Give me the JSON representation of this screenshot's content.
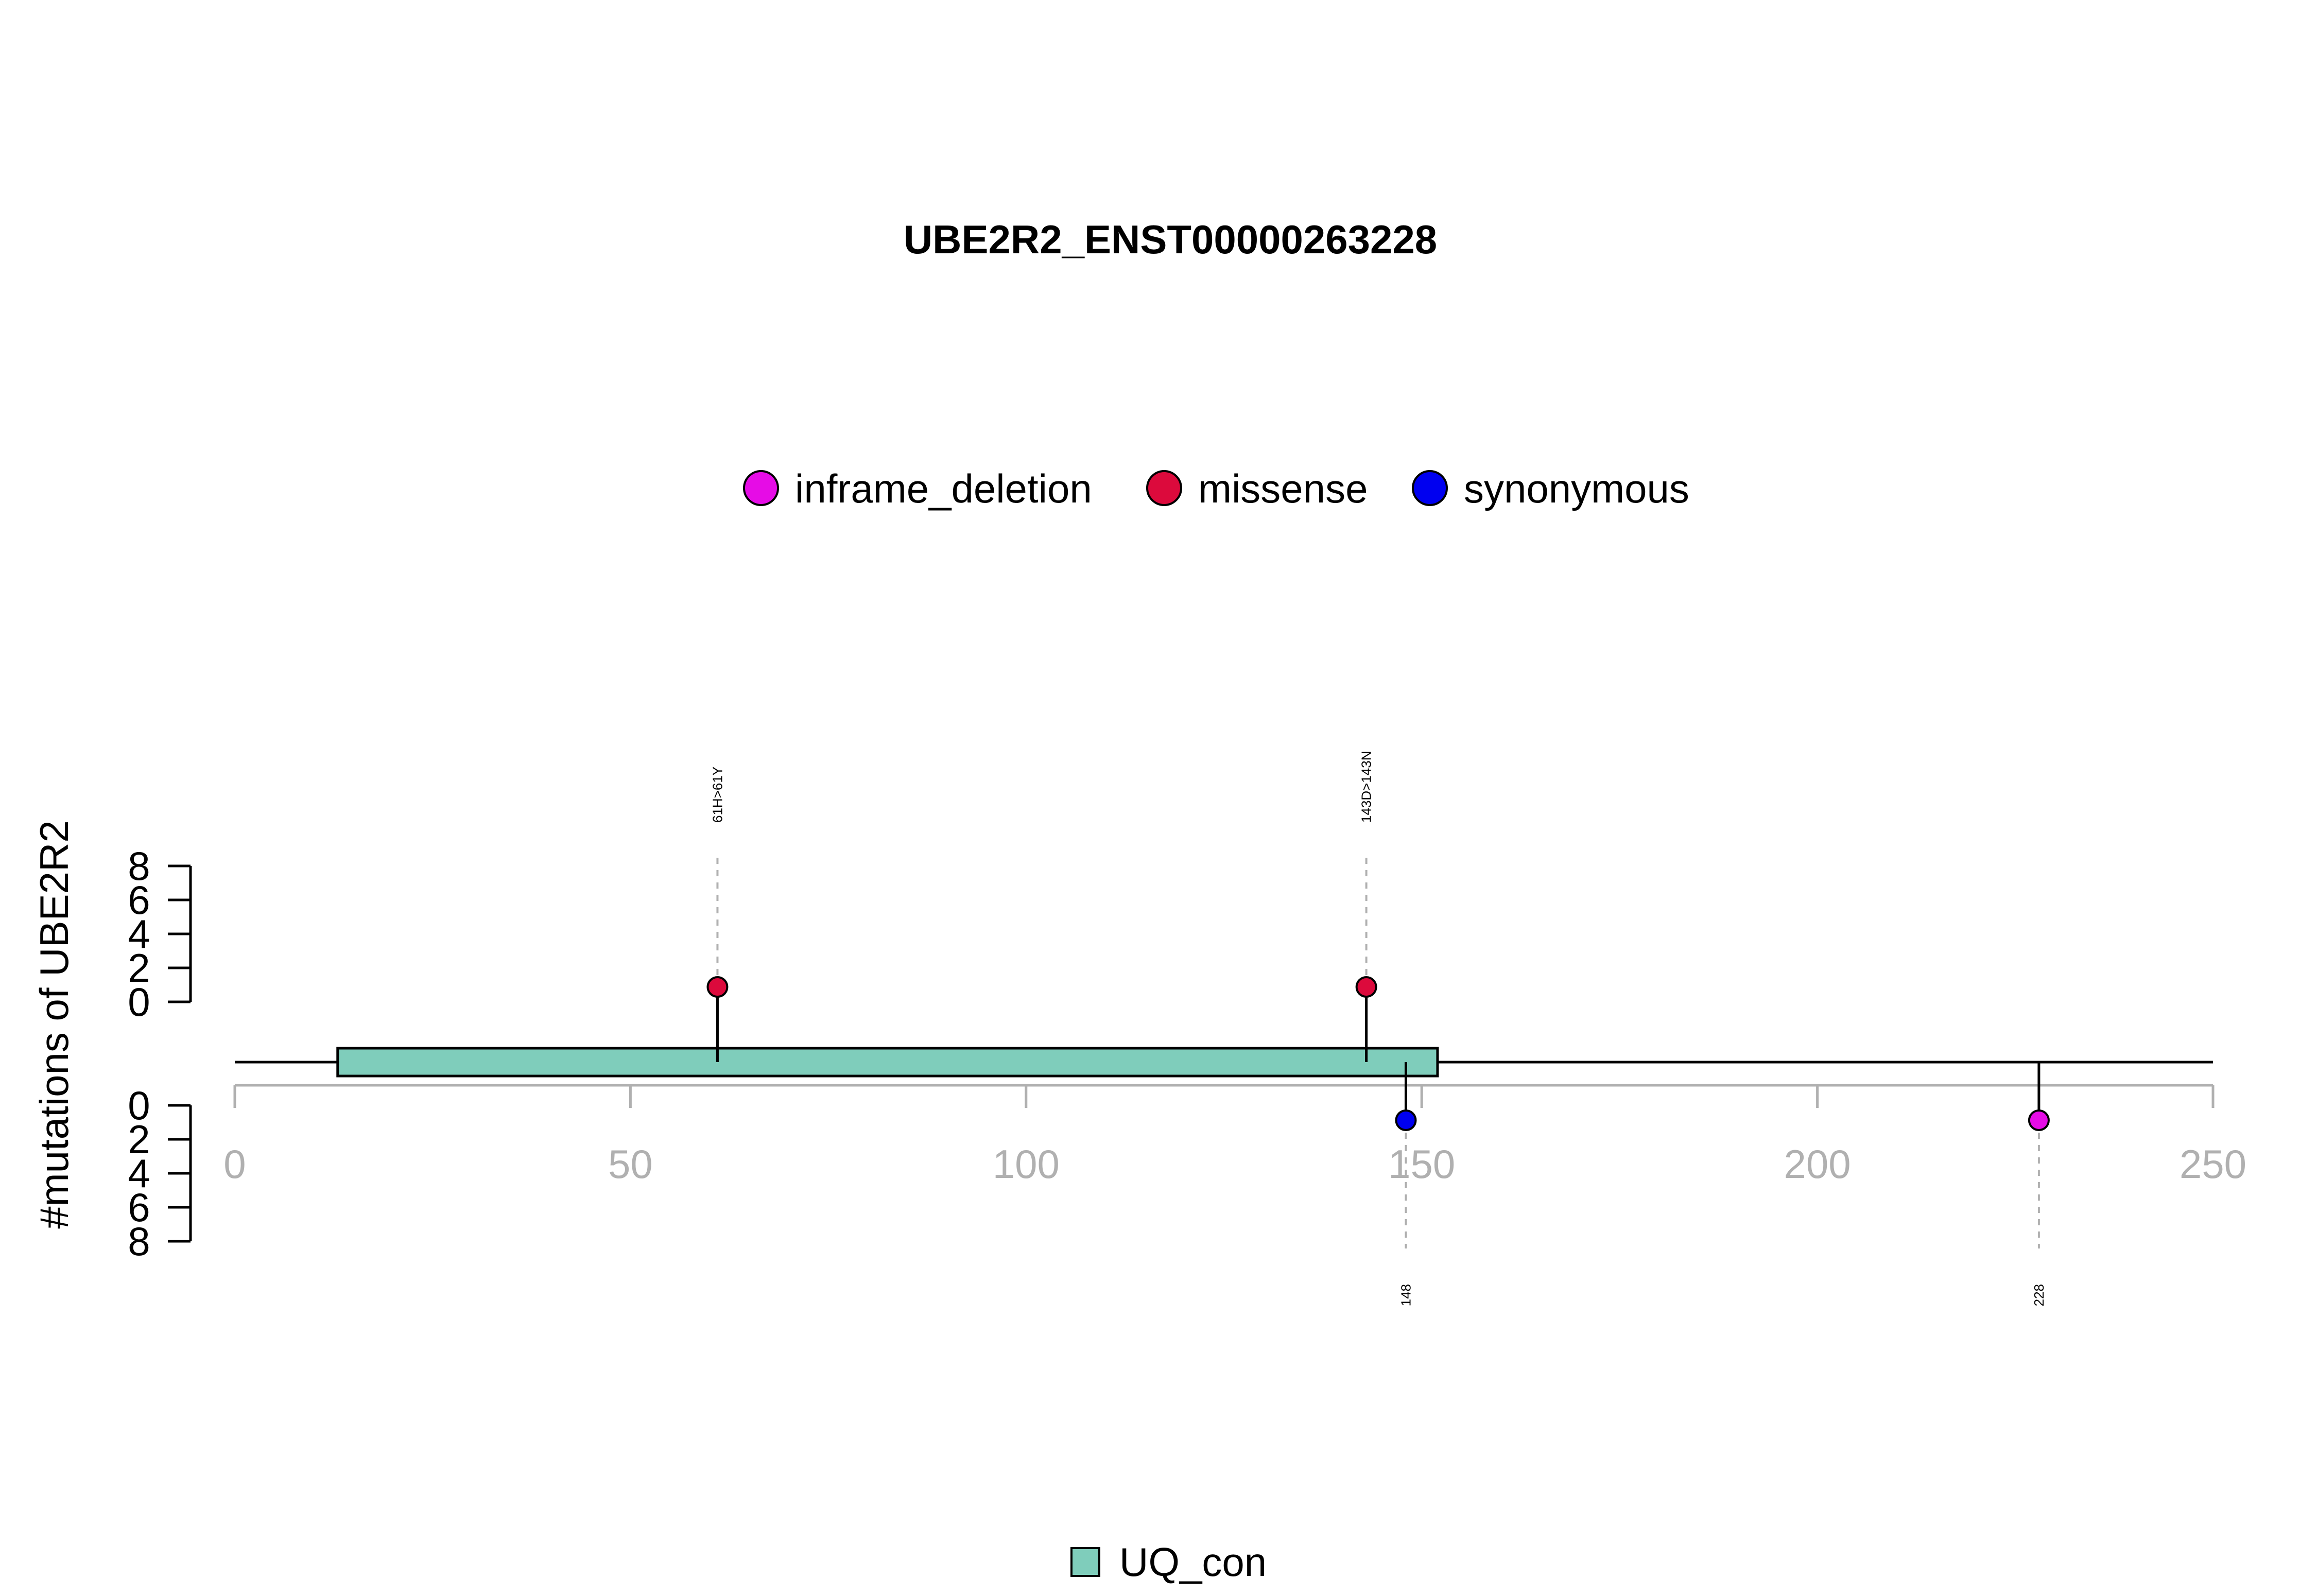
{
  "chart_data": {
    "type": "lollipop",
    "title": "UBE2R2_ENST00000263228",
    "ylabel": "#mutations of UBE2R2",
    "xlim": [
      0,
      250
    ],
    "x_ticks": [
      0,
      50,
      100,
      150,
      200,
      250
    ],
    "y_ticks_upper": [
      "8",
      "6",
      "4",
      "2",
      "0"
    ],
    "y_ticks_lower": [
      "0",
      "2",
      "4",
      "6",
      "8"
    ],
    "ylim": [
      0,
      8
    ],
    "legend": [
      {
        "name": "inframe_deletion",
        "color": "#e60ce6"
      },
      {
        "name": "missense",
        "color": "#dc0a3c"
      },
      {
        "name": "synonymous",
        "color": "#0000f0"
      }
    ],
    "mutations": [
      {
        "position": 61,
        "count": 1,
        "type": "missense",
        "side": "upper",
        "label": "61H>61Y"
      },
      {
        "position": 143,
        "count": 1,
        "type": "missense",
        "side": "upper",
        "label": "143D>143N"
      },
      {
        "position": 148,
        "count": 1,
        "type": "synonymous",
        "side": "lower",
        "label": "148"
      },
      {
        "position": 228,
        "count": 1,
        "type": "inframe_deletion",
        "side": "lower",
        "label": "228"
      }
    ],
    "protein_length": 250,
    "domains": [
      {
        "name": "UQ_con",
        "start": 13,
        "end": 152,
        "color": "#7fcdbb"
      }
    ],
    "domain_legend": [
      {
        "name": "UQ_con",
        "color": "#7fcdbb"
      }
    ]
  }
}
